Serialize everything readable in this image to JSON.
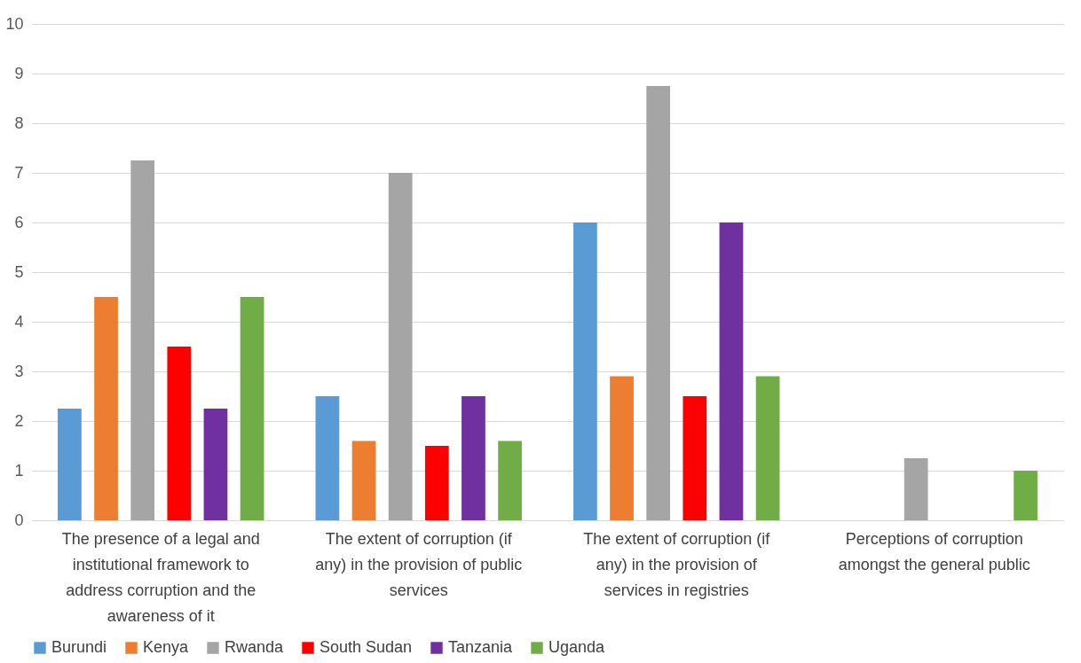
{
  "chart_data": {
    "type": "bar",
    "categories": [
      "The presence of a legal and institutional framework to address corruption and the awareness of it",
      "The extent of corruption (if any) in the provision of public services",
      "The extent of corruption (if any) in the provision of services in registries",
      "Perceptions of corruption amongst the general public"
    ],
    "series": [
      {
        "name": "Burundi",
        "color": "#5b9bd5",
        "values": [
          2.25,
          2.5,
          6,
          0
        ]
      },
      {
        "name": "Kenya",
        "color": "#ed7d31",
        "values": [
          4.5,
          1.6,
          2.9,
          0
        ]
      },
      {
        "name": "Rwanda",
        "color": "#a5a5a5",
        "values": [
          7.25,
          7,
          8.75,
          1.25
        ]
      },
      {
        "name": "South Sudan",
        "color": "#ff0000",
        "values": [
          3.5,
          1.5,
          2.5,
          0
        ]
      },
      {
        "name": "Tanzania",
        "color": "#7030a0",
        "values": [
          2.25,
          2.5,
          6,
          0
        ]
      },
      {
        "name": "Uganda",
        "color": "#70ad47",
        "values": [
          4.5,
          1.6,
          2.9,
          1
        ]
      }
    ],
    "ylim": [
      0,
      10
    ],
    "yticks": [
      0,
      1,
      2,
      3,
      4,
      5,
      6,
      7,
      8,
      9,
      10
    ],
    "grid": "y",
    "legend": "bottom"
  }
}
